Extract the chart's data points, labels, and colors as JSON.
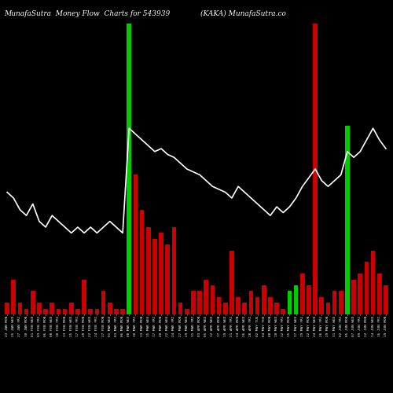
{
  "title_left": "MunafaSutra  Money Flow  Charts for 543939",
  "title_right": "(KAKA) MunafaSutra.co",
  "background_color": "#000000",
  "text_color": "#ffffff",
  "green_color": "#00cc00",
  "red_color": "#cc0000",
  "white_color": "#ffffff",
  "bar_colors": [
    "red",
    "red",
    "red",
    "red",
    "red",
    "red",
    "red",
    "red",
    "red",
    "red",
    "red",
    "red",
    "red",
    "red",
    "red",
    "red",
    "red",
    "red",
    "red",
    "green",
    "red",
    "red",
    "red",
    "red",
    "red",
    "red",
    "red",
    "red",
    "red",
    "red",
    "red",
    "red",
    "red",
    "red",
    "red",
    "red",
    "red",
    "red",
    "red",
    "red",
    "red",
    "red",
    "red",
    "red",
    "green",
    "green",
    "red",
    "red",
    "red",
    "red",
    "red",
    "red",
    "red",
    "green",
    "red",
    "red",
    "red",
    "red",
    "red",
    "red"
  ],
  "bar_heights": [
    4,
    12,
    4,
    2,
    8,
    4,
    2,
    4,
    2,
    2,
    4,
    2,
    12,
    2,
    2,
    8,
    4,
    2,
    2,
    100,
    48,
    36,
    30,
    26,
    28,
    24,
    30,
    4,
    2,
    8,
    8,
    12,
    10,
    6,
    4,
    22,
    6,
    4,
    8,
    6,
    10,
    6,
    4,
    2,
    8,
    10,
    14,
    10,
    100,
    6,
    4,
    8,
    8,
    65,
    12,
    14,
    18,
    22,
    14,
    10
  ],
  "line_values": [
    42,
    40,
    36,
    34,
    38,
    32,
    30,
    34,
    32,
    30,
    28,
    30,
    28,
    30,
    28,
    30,
    32,
    30,
    28,
    64,
    62,
    60,
    58,
    56,
    57,
    55,
    54,
    52,
    50,
    49,
    48,
    46,
    44,
    43,
    42,
    40,
    44,
    42,
    40,
    38,
    36,
    34,
    37,
    35,
    37,
    40,
    44,
    47,
    50,
    46,
    44,
    46,
    48,
    56,
    54,
    56,
    60,
    64,
    60,
    57
  ],
  "dates": [
    "23 JAN MON",
    "25 JAN WED",
    "27 JAN FRI",
    "30 JAN MON",
    "01 FEB WED",
    "03 FEB FRI",
    "06 FEB MON",
    "08 FEB WED",
    "10 FEB FRI",
    "13 FEB MON",
    "15 FEB WED",
    "17 FEB FRI",
    "20 FEB MON",
    "22 FEB WED",
    "24 FEB FRI",
    "27 FEB MON",
    "01 MAR WED",
    "03 MAR FRI",
    "06 MAR MON",
    "08 MAR WED",
    "10 MAR FRI",
    "13 MAR MON",
    "15 MAR WED",
    "17 MAR FRI",
    "20 MAR MON",
    "22 MAR WED",
    "24 MAR FRI",
    "27 MAR MON",
    "29 MAR WED",
    "31 MAR FRI",
    "03 APR MON",
    "05 APR WED",
    "12 APR WED",
    "17 APR MON",
    "19 APR WED",
    "21 APR FRI",
    "24 APR MON",
    "26 APR WED",
    "28 APR FRI",
    "02 MAY TUE",
    "04 MAY THU",
    "08 MAY MON",
    "10 MAY WED",
    "12 MAY FRI",
    "15 MAY MON",
    "17 MAY WED",
    "19 MAY FRI",
    "22 MAY MON",
    "24 MAY WED",
    "26 MAY FRI",
    "29 MAY MON",
    "31 MAY WED",
    "02 JUN FRI",
    "05 JUN MON",
    "07 JUN WED",
    "09 JUN FRI",
    "12 JUN MON",
    "14 JUN WED",
    "16 JUN FRI",
    "19 JUN MON"
  ],
  "n_bars": 60,
  "ylim": [
    0,
    100
  ],
  "line_scale": 100
}
